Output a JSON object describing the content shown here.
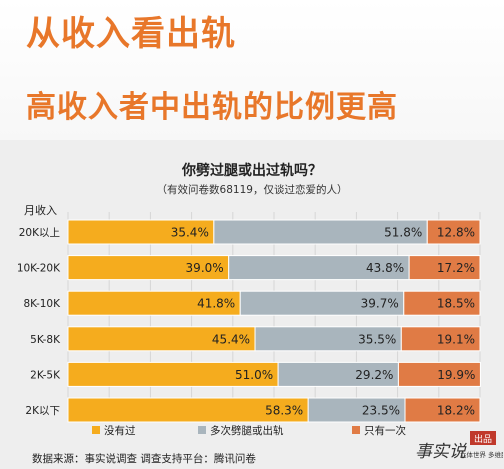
{
  "header": {
    "title": "从收入看出轨",
    "subtitle": "高收入者中出轨的比例更高"
  },
  "chart_data": {
    "type": "bar",
    "stacked": true,
    "orientation": "horizontal",
    "title": "你劈过腿或出过轨吗？",
    "subtitle": "（有效问卷数68119，仅谈过恋爱的人）",
    "ylabel": "月收入",
    "categories": [
      "20K以上",
      "10K-20K",
      "8K-10K",
      "5K-8K",
      "2K-5K",
      "2K以下"
    ],
    "series": [
      {
        "name": "没有过",
        "color": "#f5ac1e",
        "values": [
          35.4,
          39.0,
          41.8,
          45.4,
          51.0,
          58.3
        ]
      },
      {
        "name": "多次劈腿或出轨",
        "color": "#a9b5bd",
        "values": [
          51.8,
          43.8,
          39.7,
          35.5,
          29.2,
          23.5
        ]
      },
      {
        "name": "只有一次",
        "color": "#e07b45",
        "values": [
          12.8,
          17.2,
          18.5,
          19.1,
          19.9,
          18.2
        ]
      }
    ],
    "value_labels": [
      [
        "35.4%",
        "51.8%",
        "12.8%"
      ],
      [
        "39.0%",
        "43.8%",
        "17.2%"
      ],
      [
        "41.8%",
        "39.7%",
        "18.5%"
      ],
      [
        "45.4%",
        "35.5%",
        "19.1%"
      ],
      [
        "51.0%",
        "29.2%",
        "19.9%"
      ],
      [
        "58.3%",
        "23.5%",
        "18.2%"
      ]
    ],
    "xlim": [
      0,
      100
    ],
    "grid": true,
    "legend": "bottom"
  },
  "footer": {
    "source": "数据来源：事实说调查  调查支持平台：腾讯问卷",
    "stamp_mark": "事实说",
    "stamp_badge": "出品",
    "stamp_slogan": "立体世界 多维民意"
  }
}
